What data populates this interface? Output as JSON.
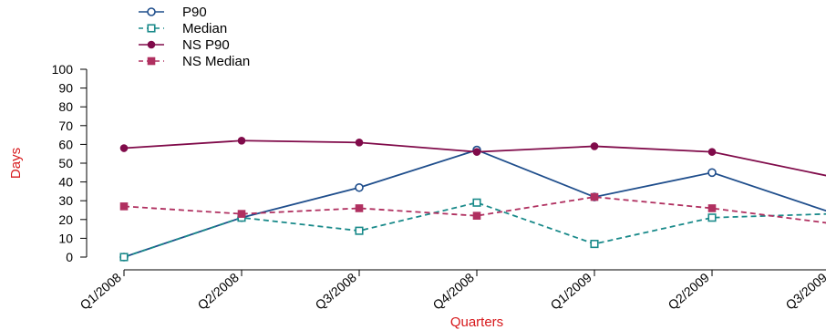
{
  "chart_data": {
    "type": "line",
    "title": "",
    "xlabel": "Quarters",
    "ylabel": "Days",
    "categories": [
      "Q1/2008",
      "Q2/2008",
      "Q3/2008",
      "Q4/2008",
      "Q1/2009",
      "Q2/2009",
      "Q3/2009"
    ],
    "ylim": [
      0,
      100
    ],
    "yticks": [
      0,
      10,
      20,
      30,
      40,
      50,
      60,
      70,
      80,
      90,
      100
    ],
    "grid": false,
    "legend_position": "top-left",
    "label_color": "#d7191c",
    "series": [
      {
        "name": "P90",
        "values": [
          0,
          21,
          37,
          57,
          32,
          45,
          24
        ],
        "color": "#1f4e8c",
        "marker": "circle-open",
        "dash": "solid"
      },
      {
        "name": "Median",
        "values": [
          0,
          21,
          14,
          29,
          7,
          21,
          23
        ],
        "color": "#1a8a8a",
        "marker": "square-open",
        "dash": "dashed"
      },
      {
        "name": "NS P90",
        "values": [
          58,
          62,
          61,
          56,
          59,
          56,
          43
        ],
        "color": "#800b4a",
        "marker": "circle-filled",
        "dash": "solid"
      },
      {
        "name": "NS Median",
        "values": [
          27,
          23,
          26,
          22,
          32,
          26,
          18
        ],
        "color": "#b03060",
        "marker": "square-filled",
        "dash": "dashed"
      }
    ]
  }
}
